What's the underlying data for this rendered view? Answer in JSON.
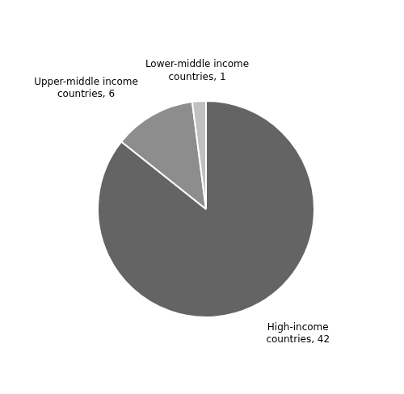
{
  "chart_data": {
    "type": "pie",
    "categories": [
      "High-income\ncountries, 42",
      "Upper-middle income\ncountries, 6",
      "Lower-middle income\ncountries, 1"
    ],
    "values": [
      42,
      6,
      1
    ],
    "colors": [
      "#646464",
      "#8d8d8d",
      "#c0c0c0"
    ]
  }
}
